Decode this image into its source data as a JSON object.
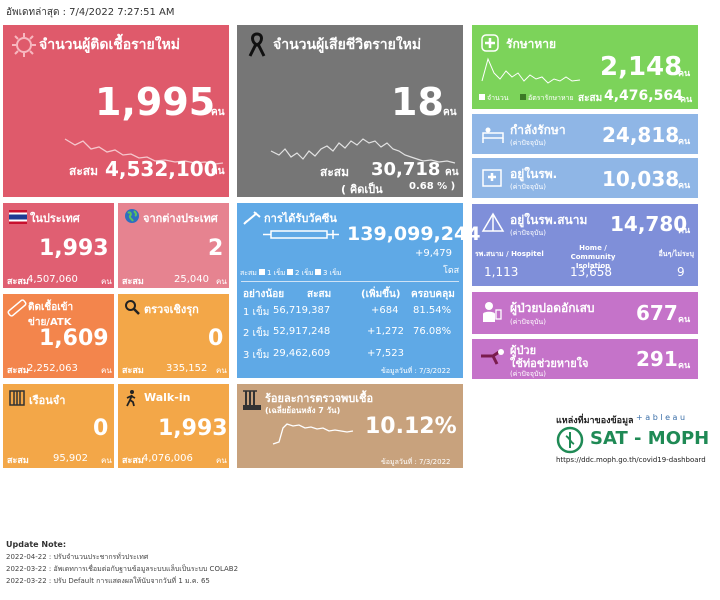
{
  "header": {
    "updated": "อัพเดทล่าสุด : 7/4/2022 7:27:51 AM"
  },
  "colors": {
    "new_cases": "#df5a6b",
    "deaths": "#767676",
    "recovered": "#7cd35a",
    "blue": "#8fb6e6",
    "purple": "#7f8fd9",
    "magenta": "#c573c9",
    "local": "#e05f72",
    "foreign": "#e68390",
    "atk": "#f3854c",
    "proactive": "#f3a748",
    "prison": "#f3a748",
    "walkin": "#f3a748",
    "vaccine": "#5fa9e6",
    "positivity": "#c8a27d"
  },
  "new_cases": {
    "title": "จำนวนผู้ติดเชื้อรายใหม่",
    "value": "1,995",
    "unit": "คน",
    "cum_label": "สะสม",
    "cum_value": "4,532,100",
    "cum_unit": "คน",
    "icon": "virus-icon"
  },
  "deaths": {
    "title": "จำนวนผู้เสียชีวิตรายใหม่",
    "value": "18",
    "unit": "คน",
    "cum_label": "สะสม",
    "cum_value": "30,718",
    "cum_unit": "คน",
    "pct_label": "( คิดเป็น",
    "pct_value": "0.68 % )",
    "icon": "ribbon-icon"
  },
  "recovered": {
    "title": "รักษาหาย",
    "value": "2,148",
    "unit": "คน",
    "legend1": "จำนวน",
    "legend2": "อัตรารักษาหาย",
    "cum_label": "สะสม",
    "cum_value": "4,476,564",
    "cum_unit": "คน",
    "icon": "cross-icon"
  },
  "in_treatment": {
    "title": "กำลังรักษา",
    "sub": "(ค่าปัจจุบัน)",
    "value": "24,818",
    "unit": "คน"
  },
  "in_hospital": {
    "title": "อยู่ในรพ.",
    "sub": "(ค่าปัจจุบัน)",
    "value": "10,038",
    "unit": "คน"
  },
  "field_hospital": {
    "title": "อยู่ในรพ.สนาม",
    "sub": "(ค่าปัจจุบัน)",
    "value": "14,780",
    "unit": "คน",
    "cols": [
      {
        "label": "รพ.สนาม / Hospitel",
        "value": "1,113"
      },
      {
        "label": "Home / Community Isolation",
        "value": "13,658"
      },
      {
        "label": "อื่นๆ/ไม่ระบุ",
        "value": "9"
      }
    ]
  },
  "pneumonia": {
    "title": "ผู้ป่วยปอดอักเสบ",
    "sub": "(ค่าปัจจุบัน)",
    "value": "677",
    "unit": "คน"
  },
  "ventilator": {
    "title1": "ผู้ป่วย",
    "title2": "ใช้ท่อช่วยหายใจ",
    "sub": "(ค่าปัจจุบัน)",
    "value": "291",
    "unit": "คน"
  },
  "local": {
    "title": "ในประเทศ",
    "value": "1,993",
    "cum_label": "สะสม",
    "cum_value": "4,507,060",
    "cum_unit": "คน"
  },
  "foreign": {
    "title": "จากต่างประเทศ",
    "value": "2",
    "cum_label": "สะสม",
    "cum_value": "25,040",
    "cum_unit": "คน"
  },
  "atk": {
    "title": "ติดเชื้อเข้าข่าย/ATK",
    "value": "1,609",
    "cum_label": "สะสม",
    "cum_value": "2,252,063",
    "cum_unit": "คน"
  },
  "proactive": {
    "title": "ตรวจเชิงรุก",
    "value": "0",
    "cum_label": "สะสม",
    "cum_value": "335,152",
    "cum_unit": "คน"
  },
  "prison": {
    "title": "เรือนจำ",
    "value": "0",
    "cum_label": "สะสม",
    "cum_value": "95,902",
    "cum_unit": "คน"
  },
  "walkin": {
    "title": "Walk-in",
    "value": "1,993",
    "cum_label": "สะสม",
    "cum_value": "4,076,006",
    "cum_unit": "คน"
  },
  "vaccine": {
    "title": "การได้รับวัคซีน",
    "total": "139,099,244",
    "today": "+9,479",
    "today_unit": "โดส",
    "legend_label": "สะสม",
    "legend": [
      "1 เข็ม",
      "2 เข็ม",
      "3 เข็ม"
    ],
    "headers": [
      "อย่างน้อย",
      "สะสม",
      "(เพิ่มขึ้น)",
      "ครอบคลุม"
    ],
    "rows": [
      {
        "dose": "1 เข็ม",
        "cum": "56,719,387",
        "inc": "+684",
        "cov": "81.54%"
      },
      {
        "dose": "2 เข็ม",
        "cum": "52,917,248",
        "inc": "+1,272",
        "cov": "76.08%"
      },
      {
        "dose": "3 เข็ม",
        "cum": "29,462,609",
        "inc": "+7,523",
        "cov": ""
      }
    ],
    "footnote": "ข้อมูลวันที่ : 7/3/2022"
  },
  "positivity": {
    "title": "ร้อยละการตรวจพบเชื้อ",
    "sub": "(เฉลี่ยย้อนหลัง 7 วัน)",
    "value": "10.12%",
    "footnote": "ข้อมูลวันที่ : 7/3/2022"
  },
  "source": {
    "label": "แหล่งที่มาของข้อมูล",
    "tableau": "+ a b l e a u",
    "brand": "SAT - MOPH",
    "url": "https://ddc.moph.go.th/covid19-dashboard"
  },
  "notes": {
    "title": "Update Note:",
    "lines": [
      "2022-04-22 : ปรับจำนวนประชากรทั่วประเทศ",
      "2022-03-22 : อัพเดทการเชื่อมต่อกับฐานข้อมูลระบบแล็บเป็นระบบ COLAB2",
      "2022-03-22 : ปรับ Default การแสดงผลให้นับจากวันที่ 1 ม.ค. 65"
    ]
  }
}
